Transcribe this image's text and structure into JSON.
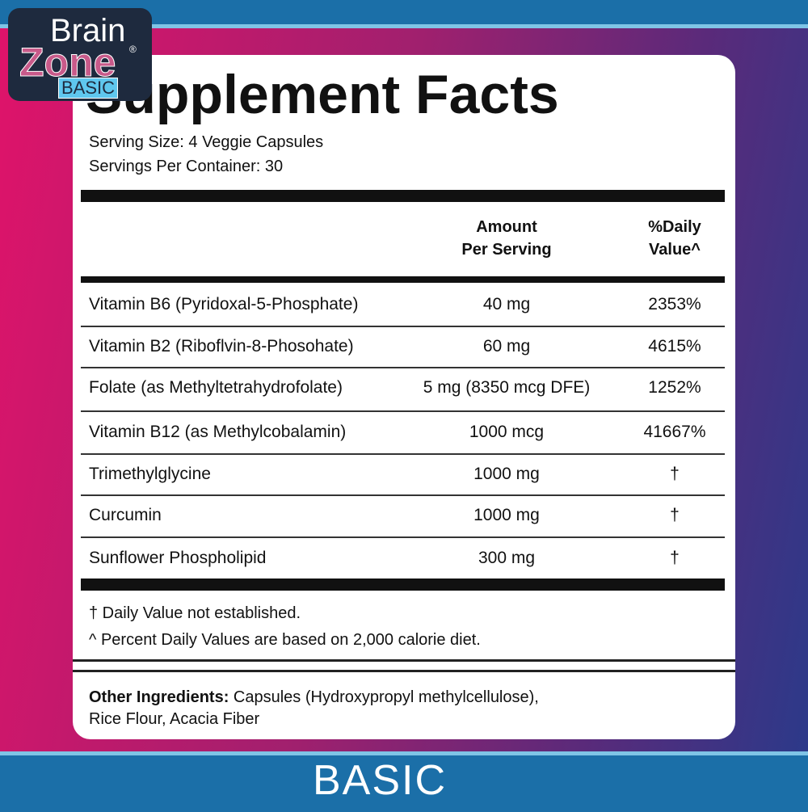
{
  "logo": {
    "brand_top": "Brain",
    "brand_bottom": "Zone",
    "mark": "®",
    "edition": "BASIC"
  },
  "facts": {
    "title": "Supplement Facts",
    "serving_size": "Serving Size: 4 Veggie Capsules",
    "servings_per_container": "Servings Per Container: 30",
    "header": {
      "amount": [
        "Amount",
        "Per Serving"
      ],
      "daily_value": [
        "%Daily",
        "Value^"
      ]
    },
    "rows": [
      [
        "Vitamin B6 (Pyridoxal-5-Phosphate)",
        "40 mg",
        "2353%"
      ],
      [
        "Vitamin B2 (Riboflvin-8-Phosohate)",
        "60 mg",
        "4615%"
      ],
      [
        "Folate (as Methyltetrahydrofolate)",
        "5 mg (8350 mcg DFE)",
        "1252%"
      ],
      [
        "Vitamin B12 (as Methylcobalamin)",
        "1000 mcg",
        "41667%"
      ],
      [
        "Trimethylglycine",
        "1000 mg",
        "†"
      ],
      [
        "Curcumin",
        "1000 mg",
        "†"
      ],
      [
        "Sunflower Phospholipid",
        "300 mg",
        "†"
      ]
    ],
    "footnotes": [
      "† Daily Value not established.",
      "^ Percent Daily Values are based on 2,000 calorie diet."
    ],
    "other_ingredients": {
      "label": "Other Ingredients:",
      "lines": [
        "Capsules (Hydroxypropyl methylcellulose),",
        "Rice Flour, Acacia Fiber"
      ]
    }
  },
  "footer": {
    "label": "BASIC"
  }
}
